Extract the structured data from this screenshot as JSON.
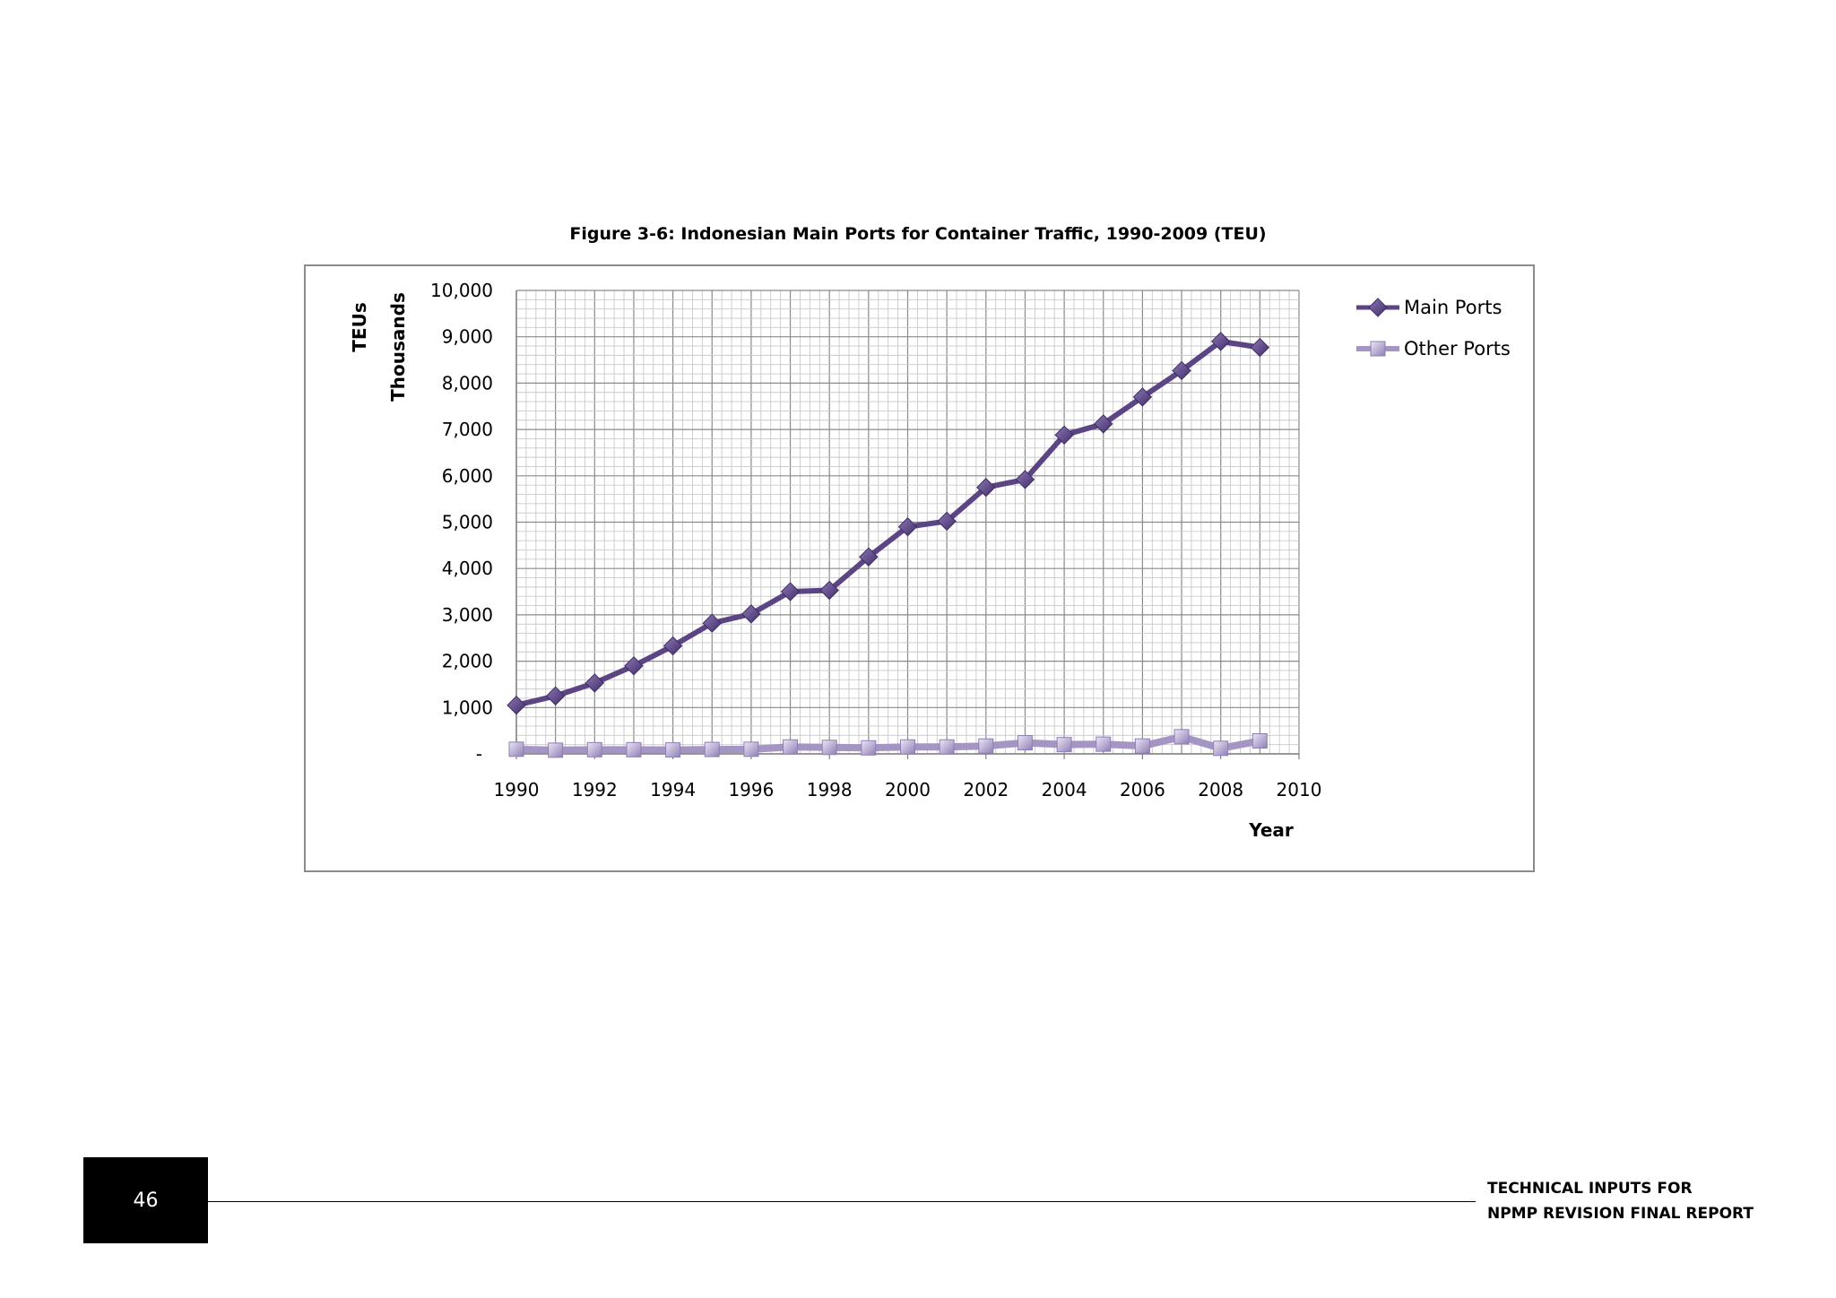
{
  "figure_caption": "Figure 3-6: Indonesian Main Ports for Container Traffic, 1990-2009 (TEU)",
  "chart_data": {
    "type": "line",
    "ylabel": "TEUs",
    "yunit_label": "Thousands",
    "xlabel": "Year",
    "xlim": [
      1990,
      2010
    ],
    "ylim": [
      0,
      10000
    ],
    "x_ticks": [
      "1990",
      "1992",
      "1994",
      "1996",
      "1998",
      "2000",
      "2002",
      "2004",
      "2006",
      "2008",
      "2010"
    ],
    "y_ticks": [
      "-",
      "1,000",
      "2,000",
      "3,000",
      "4,000",
      "5,000",
      "6,000",
      "7,000",
      "8,000",
      "9,000",
      "10,000"
    ],
    "grid": true,
    "legend_position": "right",
    "x": [
      1990,
      1991,
      1992,
      1993,
      1994,
      1995,
      1996,
      1997,
      1998,
      1999,
      2000,
      2001,
      2002,
      2003,
      2004,
      2005,
      2006,
      2007,
      2008,
      2009
    ],
    "series": [
      {
        "name": "Main Ports",
        "marker": "diamond",
        "color": "#5b4584",
        "values": [
          1050,
          1250,
          1530,
          1900,
          2330,
          2820,
          3020,
          3500,
          3530,
          4250,
          4900,
          5020,
          5750,
          5920,
          6880,
          7120,
          7700,
          8270,
          8900,
          8770
        ]
      },
      {
        "name": "Other Ports",
        "marker": "square",
        "color": "#a495c4",
        "values": [
          100,
          80,
          90,
          90,
          85,
          95,
          100,
          150,
          140,
          130,
          150,
          150,
          170,
          240,
          200,
          210,
          170,
          370,
          120,
          280
        ]
      }
    ]
  },
  "footer": {
    "page_number": "46",
    "line1": "TECHNICAL INPUTS FOR",
    "line2": "NPMP REVISION FINAL REPORT"
  }
}
